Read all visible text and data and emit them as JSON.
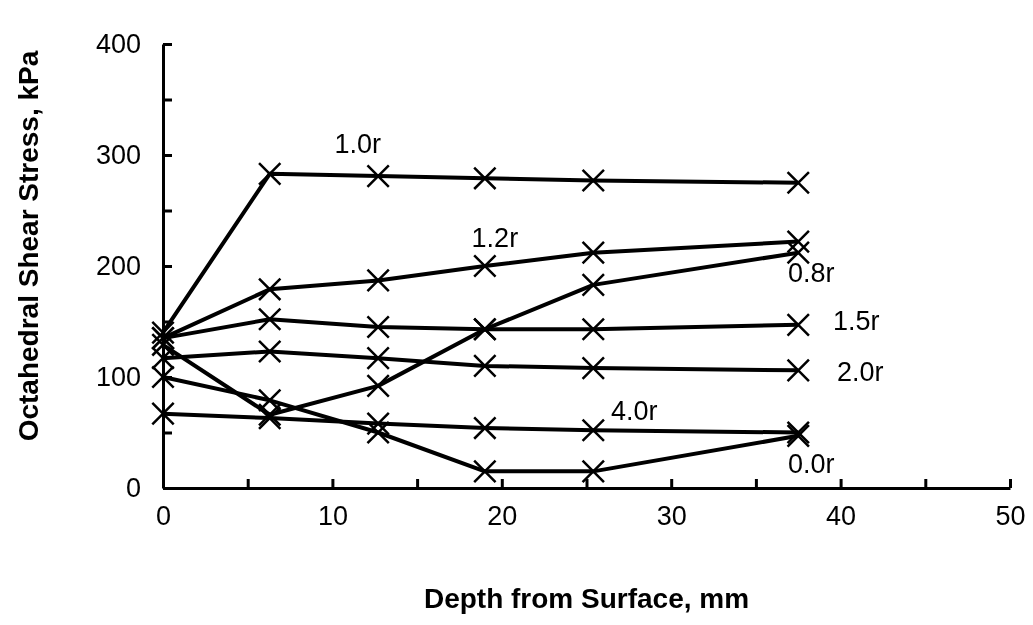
{
  "chart_data": {
    "type": "line",
    "xlabel": "Depth from Surface, mm",
    "ylabel": "Octahedral Shear Stress, kPa",
    "x": [
      0,
      6.3,
      12.7,
      19,
      25.4,
      37.5
    ],
    "series": [
      {
        "name": "1.0r",
        "color": "#000000",
        "values": [
          140,
          283,
          281,
          279,
          277,
          275
        ]
      },
      {
        "name": "1.2r",
        "color": "#000000",
        "values": [
          135,
          179,
          187,
          200,
          212,
          222
        ]
      },
      {
        "name": "0.8r",
        "color": "#000000",
        "values": [
          129,
          66,
          92,
          143,
          183,
          212
        ]
      },
      {
        "name": "1.5r",
        "color": "#000000",
        "values": [
          135,
          152,
          145,
          143,
          143,
          147
        ]
      },
      {
        "name": "2.0r",
        "color": "#000000",
        "values": [
          117,
          123,
          117,
          110,
          108,
          106
        ]
      },
      {
        "name": "4.0r",
        "color": "#000000",
        "values": [
          67,
          63,
          58,
          54,
          52,
          50
        ]
      },
      {
        "name": "0.0r",
        "color": "#000000",
        "values": [
          100,
          79,
          50,
          15,
          15,
          47
        ]
      }
    ],
    "xlim": [
      0,
      50
    ],
    "xticks": [
      0,
      {
        "value": 5,
        "label": null
      },
      10,
      {
        "value": 15,
        "label": null
      },
      20,
      {
        "value": 25,
        "label": null
      },
      30,
      {
        "value": 35,
        "label": null
      },
      40,
      {
        "value": 45,
        "label": null
      },
      50
    ],
    "ylim": [
      0,
      400
    ],
    "yticks": [
      0,
      {
        "value": 50,
        "label": null
      },
      100,
      {
        "value": 150,
        "label": null
      },
      200,
      {
        "value": 250,
        "label": null
      },
      300,
      {
        "value": 350,
        "label": null
      },
      400
    ],
    "grid": false,
    "marker": "cross",
    "line_style": "solid"
  }
}
